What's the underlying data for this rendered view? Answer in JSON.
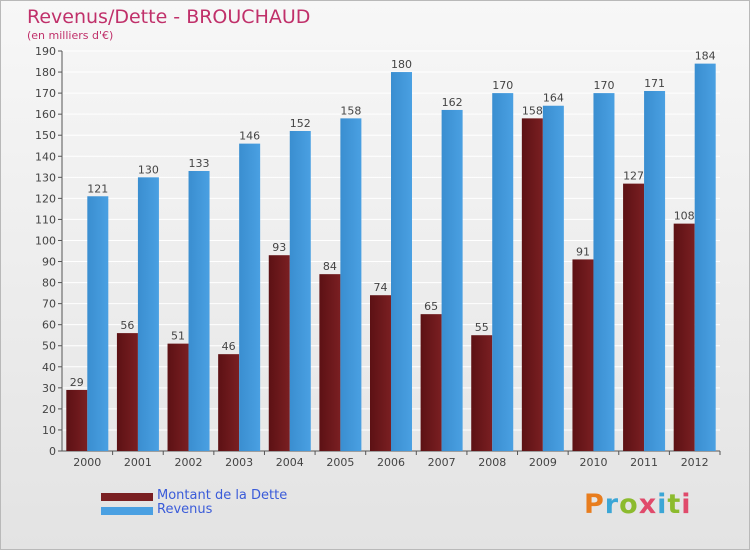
{
  "header": {
    "title": "Revenus/Dette - BROUCHAUD",
    "subtitle": "(en milliers d'€)"
  },
  "logo": {
    "text": "Proxiti"
  },
  "colors": {
    "dette": "#7a1f22",
    "revenus": "#4aa0e2",
    "grid": "#ffffff",
    "axis": "#555555",
    "title": "#c0306a",
    "legend_text": "#3a5bd9"
  },
  "chart_data": {
    "type": "bar",
    "title": "Revenus/Dette - BROUCHAUD",
    "subtitle": "(en milliers d'€)",
    "categories": [
      "2000",
      "2001",
      "2002",
      "2003",
      "2004",
      "2005",
      "2006",
      "2007",
      "2008",
      "2009",
      "2010",
      "2011",
      "2012"
    ],
    "series": [
      {
        "name": "Montant de la Dette",
        "values": [
          29,
          56,
          51,
          46,
          93,
          84,
          74,
          65,
          55,
          158,
          91,
          127,
          108
        ]
      },
      {
        "name": "Revenus",
        "values": [
          121,
          130,
          133,
          146,
          152,
          158,
          180,
          162,
          170,
          164,
          170,
          171,
          184
        ]
      }
    ],
    "ylim": [
      0,
      190
    ],
    "ytick_step": 10,
    "grid": true,
    "legend": "bottom-left"
  }
}
